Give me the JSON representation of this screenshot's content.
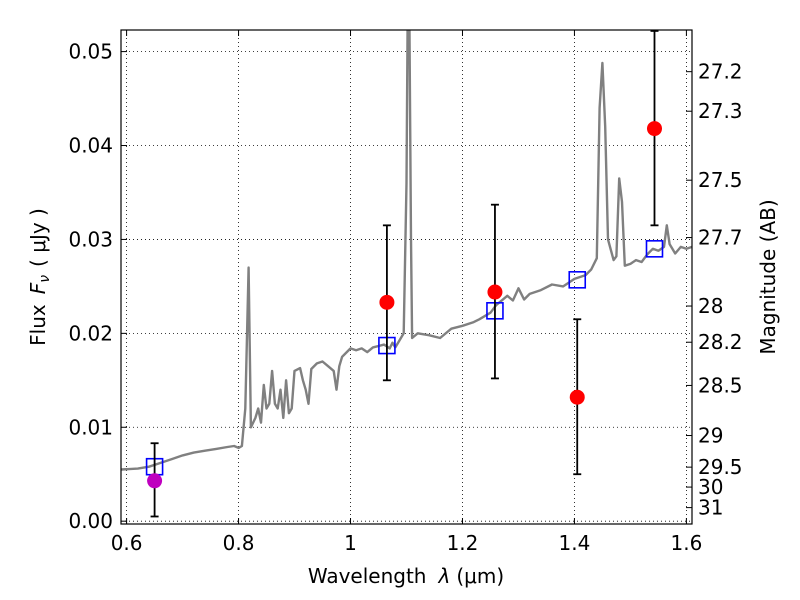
{
  "chart_data": {
    "type": "scatter",
    "x_label": "Wavelength",
    "x_label_symbol": "λ",
    "x_label_unit": "(μm)",
    "y_label": "Flux",
    "y_label_symbol": "F",
    "y_label_subscript": "ν",
    "y_label_unit": "( μJy )",
    "y2_label": "Magnitude (AB)",
    "xlim": [
      0.59,
      1.61
    ],
    "ylim": [
      -0.0003,
      0.0523
    ],
    "x_ticks": [
      {
        "value": 0.6,
        "label": "0.6"
      },
      {
        "value": 0.8,
        "label": "0.8"
      },
      {
        "value": 1.0,
        "label": "1"
      },
      {
        "value": 1.2,
        "label": "1.2"
      },
      {
        "value": 1.4,
        "label": "1.4"
      },
      {
        "value": 1.6,
        "label": "1.6"
      }
    ],
    "y_ticks": [
      {
        "value": 0.0,
        "label": "0.00"
      },
      {
        "value": 0.01,
        "label": "0.01"
      },
      {
        "value": 0.02,
        "label": "0.02"
      },
      {
        "value": 0.03,
        "label": "0.03"
      },
      {
        "value": 0.04,
        "label": "0.04"
      },
      {
        "value": 0.05,
        "label": "0.05"
      }
    ],
    "y2_ticks": [
      {
        "mag": 27.2,
        "label": "27.2"
      },
      {
        "mag": 27.3,
        "label": "27.3"
      },
      {
        "mag": 27.5,
        "label": "27.5"
      },
      {
        "mag": 27.7,
        "label": "27.7"
      },
      {
        "mag": 28.0,
        "label": "28"
      },
      {
        "mag": 28.2,
        "label": "28.2"
      },
      {
        "mag": 28.5,
        "label": "28.5"
      },
      {
        "mag": 29.0,
        "label": "29"
      },
      {
        "mag": 29.5,
        "label": "29.5"
      },
      {
        "mag": 30.0,
        "label": "30"
      },
      {
        "mag": 31.0,
        "label": "31"
      }
    ],
    "grid": true,
    "model_spectrum": {
      "color": "#808080",
      "points": [
        [
          0.59,
          0.0055
        ],
        [
          0.62,
          0.0056
        ],
        [
          0.64,
          0.0058
        ],
        [
          0.66,
          0.0062
        ],
        [
          0.68,
          0.0066
        ],
        [
          0.7,
          0.007
        ],
        [
          0.72,
          0.0073
        ],
        [
          0.74,
          0.0075
        ],
        [
          0.76,
          0.0077
        ],
        [
          0.78,
          0.0079
        ],
        [
          0.792,
          0.008
        ],
        [
          0.8,
          0.0078
        ],
        [
          0.806,
          0.008
        ],
        [
          0.812,
          0.012
        ],
        [
          0.818,
          0.027
        ],
        [
          0.822,
          0.01
        ],
        [
          0.83,
          0.011
        ],
        [
          0.835,
          0.012
        ],
        [
          0.84,
          0.0105
        ],
        [
          0.845,
          0.0145
        ],
        [
          0.85,
          0.012
        ],
        [
          0.855,
          0.0125
        ],
        [
          0.86,
          0.016
        ],
        [
          0.865,
          0.0125
        ],
        [
          0.87,
          0.012
        ],
        [
          0.875,
          0.014
        ],
        [
          0.88,
          0.011
        ],
        [
          0.885,
          0.015
        ],
        [
          0.89,
          0.0115
        ],
        [
          0.895,
          0.012
        ],
        [
          0.9,
          0.016
        ],
        [
          0.91,
          0.0163
        ],
        [
          0.915,
          0.015
        ],
        [
          0.92,
          0.014
        ],
        [
          0.925,
          0.0125
        ],
        [
          0.93,
          0.0162
        ],
        [
          0.94,
          0.0168
        ],
        [
          0.95,
          0.017
        ],
        [
          0.96,
          0.0165
        ],
        [
          0.97,
          0.016
        ],
        [
          0.975,
          0.014
        ],
        [
          0.98,
          0.0165
        ],
        [
          0.985,
          0.0175
        ],
        [
          0.99,
          0.0178
        ],
        [
          1.0,
          0.0184
        ],
        [
          1.01,
          0.0182
        ],
        [
          1.02,
          0.0184
        ],
        [
          1.03,
          0.018
        ],
        [
          1.04,
          0.0185
        ],
        [
          1.06,
          0.0188
        ],
        [
          1.07,
          0.0184
        ],
        [
          1.075,
          0.019
        ],
        [
          1.08,
          0.0185
        ],
        [
          1.085,
          0.019
        ],
        [
          1.09,
          0.0195
        ],
        [
          1.095,
          0.02
        ],
        [
          1.1,
          0.036
        ],
        [
          1.102,
          0.053
        ],
        [
          1.105,
          0.055
        ],
        [
          1.108,
          0.03
        ],
        [
          1.11,
          0.0195
        ],
        [
          1.12,
          0.02
        ],
        [
          1.14,
          0.0198
        ],
        [
          1.16,
          0.0195
        ],
        [
          1.18,
          0.0205
        ],
        [
          1.2,
          0.0208
        ],
        [
          1.22,
          0.0212
        ],
        [
          1.23,
          0.0215
        ],
        [
          1.25,
          0.0222
        ],
        [
          1.26,
          0.023
        ],
        [
          1.28,
          0.024
        ],
        [
          1.29,
          0.0235
        ],
        [
          1.3,
          0.0248
        ],
        [
          1.31,
          0.0236
        ],
        [
          1.32,
          0.0242
        ],
        [
          1.34,
          0.0246
        ],
        [
          1.36,
          0.0252
        ],
        [
          1.38,
          0.025
        ],
        [
          1.4,
          0.0258
        ],
        [
          1.42,
          0.0262
        ],
        [
          1.43,
          0.0268
        ],
        [
          1.44,
          0.028
        ],
        [
          1.445,
          0.044
        ],
        [
          1.45,
          0.0488
        ],
        [
          1.455,
          0.042
        ],
        [
          1.46,
          0.03
        ],
        [
          1.47,
          0.0278
        ],
        [
          1.475,
          0.0282
        ],
        [
          1.48,
          0.0365
        ],
        [
          1.485,
          0.034
        ],
        [
          1.49,
          0.0272
        ],
        [
          1.5,
          0.0274
        ],
        [
          1.51,
          0.0278
        ],
        [
          1.52,
          0.0276
        ],
        [
          1.53,
          0.0284
        ],
        [
          1.54,
          0.029
        ],
        [
          1.55,
          0.0288
        ],
        [
          1.56,
          0.0292
        ],
        [
          1.565,
          0.0315
        ],
        [
          1.57,
          0.0295
        ],
        [
          1.58,
          0.0285
        ],
        [
          1.59,
          0.0292
        ],
        [
          1.6,
          0.029
        ],
        [
          1.61,
          0.0292
        ]
      ]
    },
    "model_bandpass": {
      "color": "#0000ff",
      "points": [
        [
          0.65,
          0.0058
        ],
        [
          1.065,
          0.0187
        ],
        [
          1.258,
          0.0224
        ],
        [
          1.405,
          0.0257
        ],
        [
          1.543,
          0.029
        ]
      ]
    },
    "observed": [
      {
        "x": 0.65,
        "y": 0.0043,
        "err_low": 0.0005,
        "err_high": 0.0083,
        "color": "#bf00bf"
      },
      {
        "x": 1.065,
        "y": 0.0233,
        "err_low": 0.015,
        "err_high": 0.0315,
        "color": "#ff0000"
      },
      {
        "x": 1.258,
        "y": 0.0244,
        "err_low": 0.0152,
        "err_high": 0.0337,
        "color": "#ff0000"
      },
      {
        "x": 1.405,
        "y": 0.0132,
        "err_low": 0.005,
        "err_high": 0.0215,
        "color": "#ff0000"
      },
      {
        "x": 1.543,
        "y": 0.0418,
        "err_low": 0.0315,
        "err_high": 0.0522,
        "color": "#ff0000"
      }
    ]
  }
}
